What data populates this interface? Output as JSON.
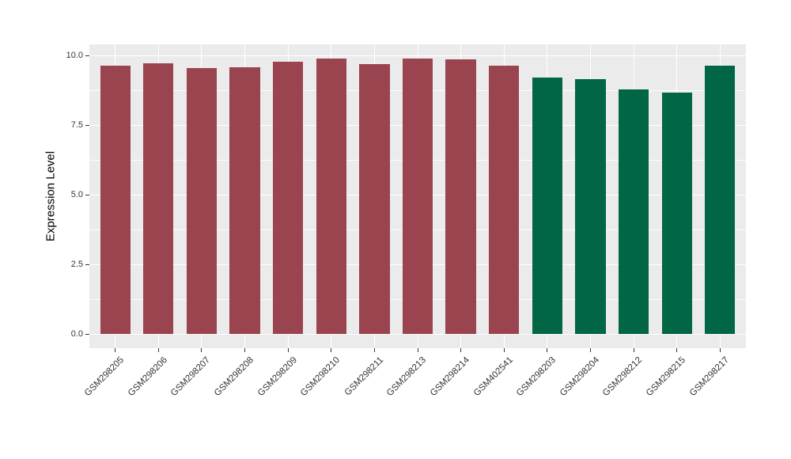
{
  "chart_data": {
    "type": "bar",
    "title": "",
    "xlabel": "",
    "ylabel": "Expression Level",
    "ylim": [
      0,
      10.4
    ],
    "y_major_ticks": [
      0.0,
      2.5,
      5.0,
      7.5,
      10.0
    ],
    "y_tick_labels": [
      "0.0",
      "2.5",
      "5.0",
      "7.5",
      "10.0"
    ],
    "y_minor_ticks": [
      1.25,
      3.75,
      6.25,
      8.75
    ],
    "grid": true,
    "legend_position": "none",
    "categories": [
      "GSM298205",
      "GSM298206",
      "GSM298207",
      "GSM298208",
      "GSM298209",
      "GSM298210",
      "GSM298211",
      "GSM298213",
      "GSM298214",
      "GSM402541",
      "GSM298203",
      "GSM298204",
      "GSM298212",
      "GSM298215",
      "GSM298217"
    ],
    "series": [
      {
        "name": "Expression Level",
        "values": [
          9.64,
          9.72,
          9.55,
          9.57,
          9.78,
          9.89,
          9.7,
          9.88,
          9.86,
          9.62,
          9.2,
          9.15,
          8.79,
          8.66,
          9.64
        ]
      }
    ],
    "bar_colors": [
      "#9A4450",
      "#9A4450",
      "#9A4450",
      "#9A4450",
      "#9A4450",
      "#9A4450",
      "#9A4450",
      "#9A4450",
      "#9A4450",
      "#9A4450",
      "#006646",
      "#006646",
      "#006646",
      "#006646",
      "#006646"
    ],
    "colors": {
      "red_group": "#9A4450",
      "green_group": "#006646",
      "panel_background": "#EBEBEB",
      "gridline": "#FFFFFF",
      "axis_text": "#333333"
    }
  }
}
